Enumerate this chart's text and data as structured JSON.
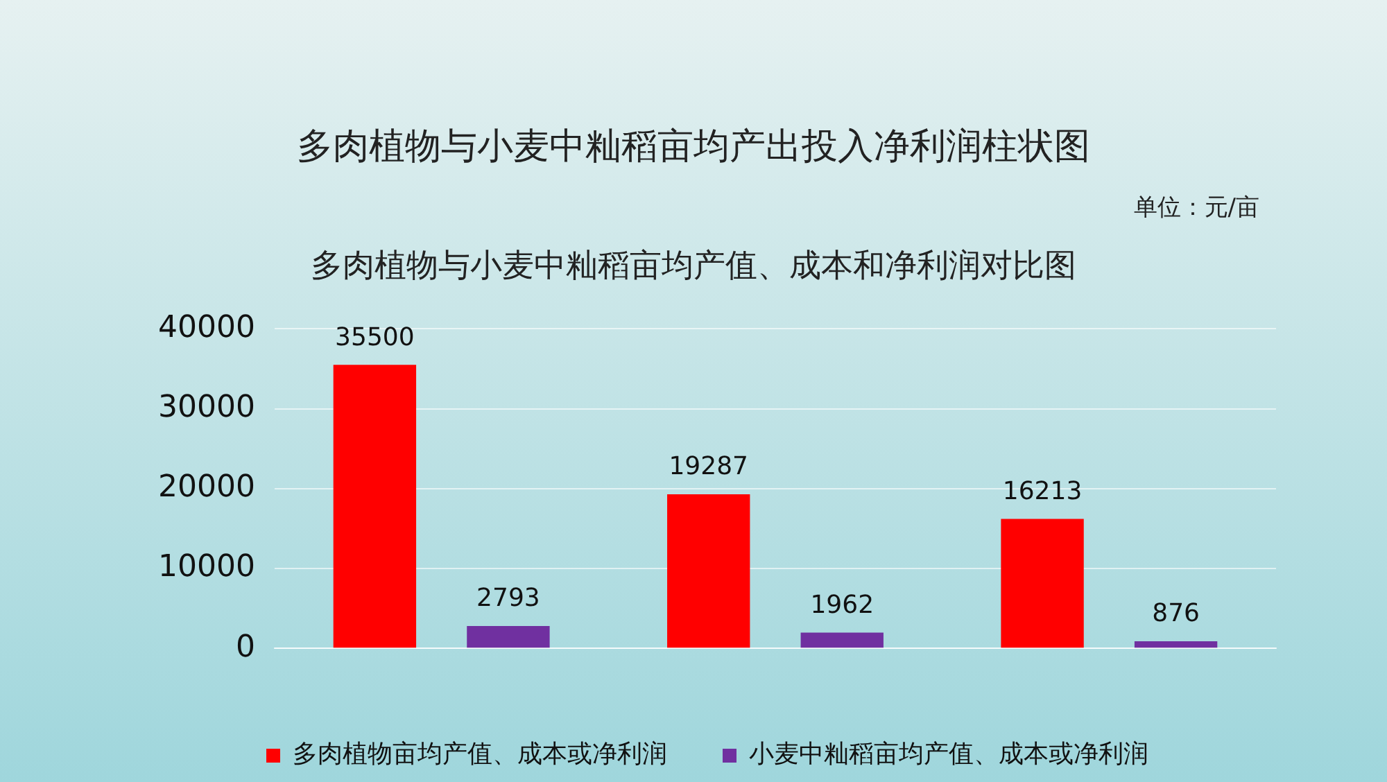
{
  "chart_data": {
    "type": "bar",
    "title": "多肉植物与小麦中籼稻亩均产出投入净利润柱状图",
    "subtitle": "多肉植物与小麦中籼稻亩均产值、成本和净利润对比图",
    "annotations": [
      "单位：元/亩"
    ],
    "categories": [
      null,
      null,
      null
    ],
    "series": [
      {
        "name": "多肉植物亩均产值、成本或净利润",
        "color": "#ff0000",
        "values": [
          35500,
          19287,
          16213
        ]
      },
      {
        "name": "小麦中籼稻亩均产值、成本或净利润",
        "color": "#7030a0",
        "values": [
          2793,
          1962,
          876
        ]
      }
    ],
    "ylim": [
      0,
      40000
    ],
    "yticks": [
      0,
      10000,
      20000,
      30000,
      40000
    ],
    "grid": "y",
    "legend": "bottom",
    "data_labels": true
  }
}
